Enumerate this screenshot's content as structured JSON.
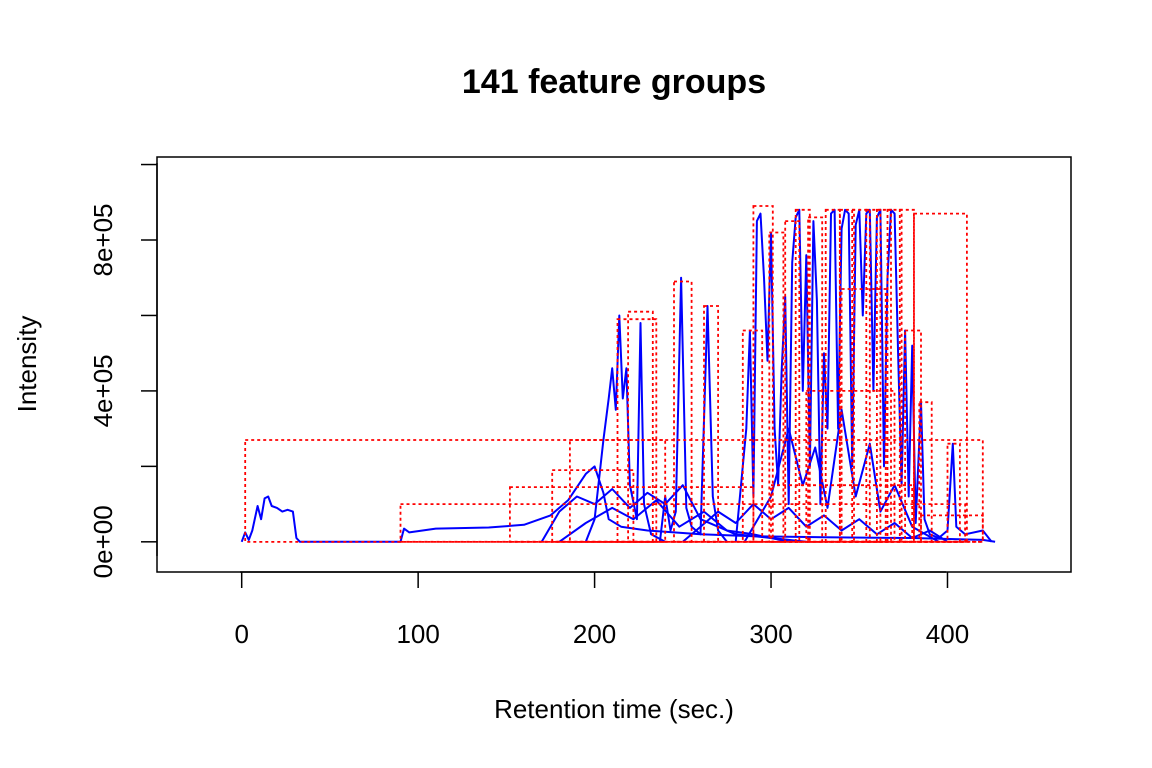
{
  "chart_data": {
    "type": "line",
    "title": "141 feature groups",
    "xlabel": "Retention time (sec.)",
    "ylabel": "Intensity",
    "xlim": [
      -48,
      470
    ],
    "ylim": [
      -80000,
      1020000
    ],
    "x_ticks": [
      0,
      100,
      200,
      300,
      400
    ],
    "x_tick_labels": [
      "0",
      "100",
      "200",
      "300",
      "400"
    ],
    "y_ticks": [
      0,
      200000,
      400000,
      600000,
      800000,
      1000000
    ],
    "y_tick_labels": [
      "0e+00",
      "",
      "4e+05",
      "",
      "8e+05",
      ""
    ],
    "grid": false,
    "legend": "none",
    "colors": {
      "eic": "#0000ff",
      "box": "#ff0000"
    },
    "series": [
      {
        "points": [
          [
            0,
            0
          ],
          [
            2,
            25000
          ],
          [
            4,
            5000
          ],
          [
            6,
            30000
          ],
          [
            9,
            95000
          ],
          [
            11,
            60000
          ],
          [
            13,
            115000
          ],
          [
            15,
            120000
          ],
          [
            17,
            95000
          ],
          [
            20,
            90000
          ],
          [
            23,
            80000
          ],
          [
            26,
            85000
          ],
          [
            29,
            80000
          ],
          [
            31,
            10000
          ],
          [
            33,
            0
          ],
          [
            90,
            0
          ],
          [
            92,
            35000
          ],
          [
            95,
            25000
          ],
          [
            110,
            35000
          ],
          [
            140,
            38000
          ],
          [
            160,
            45000
          ],
          [
            175,
            70000
          ],
          [
            185,
            110000
          ],
          [
            195,
            180000
          ],
          [
            200,
            200000
          ],
          [
            205,
            130000
          ],
          [
            208,
            60000
          ],
          [
            215,
            40000
          ],
          [
            230,
            30000
          ],
          [
            260,
            20000
          ],
          [
            290,
            15000
          ],
          [
            330,
            12000
          ],
          [
            380,
            10000
          ],
          [
            420,
            5000
          ],
          [
            427,
            0
          ]
        ]
      },
      {
        "points": [
          [
            195,
            0
          ],
          [
            200,
            60000
          ],
          [
            205,
            270000
          ],
          [
            208,
            380000
          ],
          [
            210,
            460000
          ],
          [
            212,
            350000
          ],
          [
            214,
            600000
          ],
          [
            216,
            380000
          ],
          [
            218,
            460000
          ],
          [
            220,
            150000
          ],
          [
            224,
            60000
          ],
          [
            226,
            580000
          ],
          [
            228,
            100000
          ],
          [
            232,
            20000
          ],
          [
            240,
            0
          ]
        ]
      },
      {
        "points": [
          [
            237,
            0
          ],
          [
            240,
            120000
          ],
          [
            243,
            30000
          ],
          [
            246,
            80000
          ],
          [
            249,
            700000
          ],
          [
            252,
            90000
          ],
          [
            255,
            40000
          ],
          [
            260,
            20000
          ],
          [
            264,
            625000
          ],
          [
            267,
            120000
          ],
          [
            270,
            30000
          ],
          [
            275,
            0
          ]
        ]
      },
      {
        "points": [
          [
            280,
            0
          ],
          [
            286,
            300000
          ],
          [
            288,
            560000
          ],
          [
            290,
            120000
          ],
          [
            292,
            850000
          ],
          [
            294,
            870000
          ],
          [
            296,
            700000
          ],
          [
            298,
            480000
          ],
          [
            300,
            820000
          ],
          [
            302,
            300000
          ],
          [
            304,
            150000
          ],
          [
            306,
            450000
          ],
          [
            308,
            650000
          ],
          [
            310,
            100000
          ],
          [
            312,
            740000
          ],
          [
            314,
            860000
          ],
          [
            316,
            880000
          ],
          [
            318,
            400000
          ],
          [
            320,
            760000
          ],
          [
            322,
            200000
          ],
          [
            324,
            850000
          ],
          [
            326,
            640000
          ],
          [
            328,
            100000
          ],
          [
            330,
            500000
          ],
          [
            332,
            300000
          ],
          [
            334,
            870000
          ],
          [
            336,
            880000
          ],
          [
            338,
            300000
          ],
          [
            340,
            830000
          ],
          [
            342,
            880000
          ],
          [
            344,
            870000
          ],
          [
            346,
            200000
          ],
          [
            348,
            840000
          ],
          [
            350,
            880000
          ],
          [
            352,
            600000
          ],
          [
            354,
            870000
          ],
          [
            356,
            880000
          ],
          [
            358,
            400000
          ],
          [
            360,
            860000
          ],
          [
            362,
            880000
          ],
          [
            364,
            200000
          ],
          [
            366,
            700000
          ],
          [
            368,
            880000
          ],
          [
            370,
            870000
          ],
          [
            372,
            500000
          ],
          [
            374,
            150000
          ],
          [
            376,
            560000
          ],
          [
            378,
            120000
          ],
          [
            380,
            520000
          ],
          [
            382,
            50000
          ],
          [
            385,
            370000
          ],
          [
            387,
            60000
          ],
          [
            390,
            20000
          ],
          [
            395,
            10000
          ],
          [
            400,
            30000
          ],
          [
            403,
            260000
          ],
          [
            405,
            40000
          ],
          [
            410,
            20000
          ],
          [
            420,
            30000
          ],
          [
            425,
            0
          ]
        ]
      },
      {
        "points": [
          [
            170,
            0
          ],
          [
            180,
            80000
          ],
          [
            190,
            120000
          ],
          [
            200,
            100000
          ],
          [
            210,
            140000
          ],
          [
            220,
            90000
          ],
          [
            230,
            130000
          ],
          [
            240,
            100000
          ],
          [
            250,
            150000
          ],
          [
            260,
            60000
          ],
          [
            270,
            40000
          ],
          [
            280,
            20000
          ],
          [
            300,
            10000
          ],
          [
            320,
            0
          ]
        ]
      },
      {
        "points": [
          [
            180,
            0
          ],
          [
            195,
            50000
          ],
          [
            210,
            90000
          ],
          [
            222,
            60000
          ],
          [
            235,
            110000
          ],
          [
            248,
            40000
          ],
          [
            262,
            80000
          ],
          [
            275,
            30000
          ],
          [
            290,
            20000
          ],
          [
            310,
            0
          ]
        ]
      },
      {
        "points": [
          [
            250,
            0
          ],
          [
            260,
            40000
          ],
          [
            270,
            80000
          ],
          [
            280,
            50000
          ],
          [
            290,
            100000
          ],
          [
            300,
            60000
          ],
          [
            310,
            90000
          ],
          [
            320,
            40000
          ],
          [
            330,
            70000
          ],
          [
            340,
            30000
          ],
          [
            350,
            60000
          ],
          [
            360,
            20000
          ],
          [
            370,
            50000
          ],
          [
            380,
            10000
          ],
          [
            390,
            30000
          ],
          [
            400,
            0
          ]
        ]
      },
      {
        "points": [
          [
            285,
            0
          ],
          [
            300,
            120000
          ],
          [
            310,
            300000
          ],
          [
            318,
            150000
          ],
          [
            325,
            250000
          ],
          [
            332,
            90000
          ],
          [
            340,
            350000
          ],
          [
            348,
            120000
          ],
          [
            356,
            260000
          ],
          [
            362,
            80000
          ],
          [
            370,
            150000
          ],
          [
            380,
            40000
          ],
          [
            395,
            0
          ]
        ]
      }
    ],
    "boxes": [
      [
        2,
        420,
        0,
        270000
      ],
      [
        90,
        410,
        0,
        100000
      ],
      [
        152,
        290,
        0,
        145000
      ],
      [
        176,
        222,
        0,
        190000
      ],
      [
        186,
        240,
        0,
        270000
      ],
      [
        213,
        235,
        0,
        590000
      ],
      [
        219,
        233,
        0,
        610000
      ],
      [
        245,
        255,
        0,
        690000
      ],
      [
        262,
        270,
        0,
        625000
      ],
      [
        284,
        295,
        0,
        560000
      ],
      [
        290,
        301,
        0,
        890000
      ],
      [
        299,
        307,
        0,
        820000
      ],
      [
        308,
        316,
        0,
        850000
      ],
      [
        314,
        322,
        0,
        880000
      ],
      [
        321,
        329,
        0,
        860000
      ],
      [
        331,
        339,
        0,
        880000
      ],
      [
        339,
        347,
        0,
        880000
      ],
      [
        346,
        356,
        0,
        880000
      ],
      [
        354,
        362,
        0,
        880000
      ],
      [
        360,
        368,
        0,
        880000
      ],
      [
        366,
        374,
        0,
        880000
      ],
      [
        373,
        381,
        0,
        880000
      ],
      [
        381,
        411,
        0,
        870000
      ],
      [
        376,
        385,
        0,
        560000
      ],
      [
        384,
        391,
        0,
        370000
      ],
      [
        400,
        407,
        0,
        260000
      ],
      [
        385,
        420,
        0,
        70000
      ],
      [
        300,
        380,
        0,
        150000
      ],
      [
        320,
        370,
        0,
        400000
      ],
      [
        340,
        365,
        0,
        670000
      ]
    ]
  }
}
